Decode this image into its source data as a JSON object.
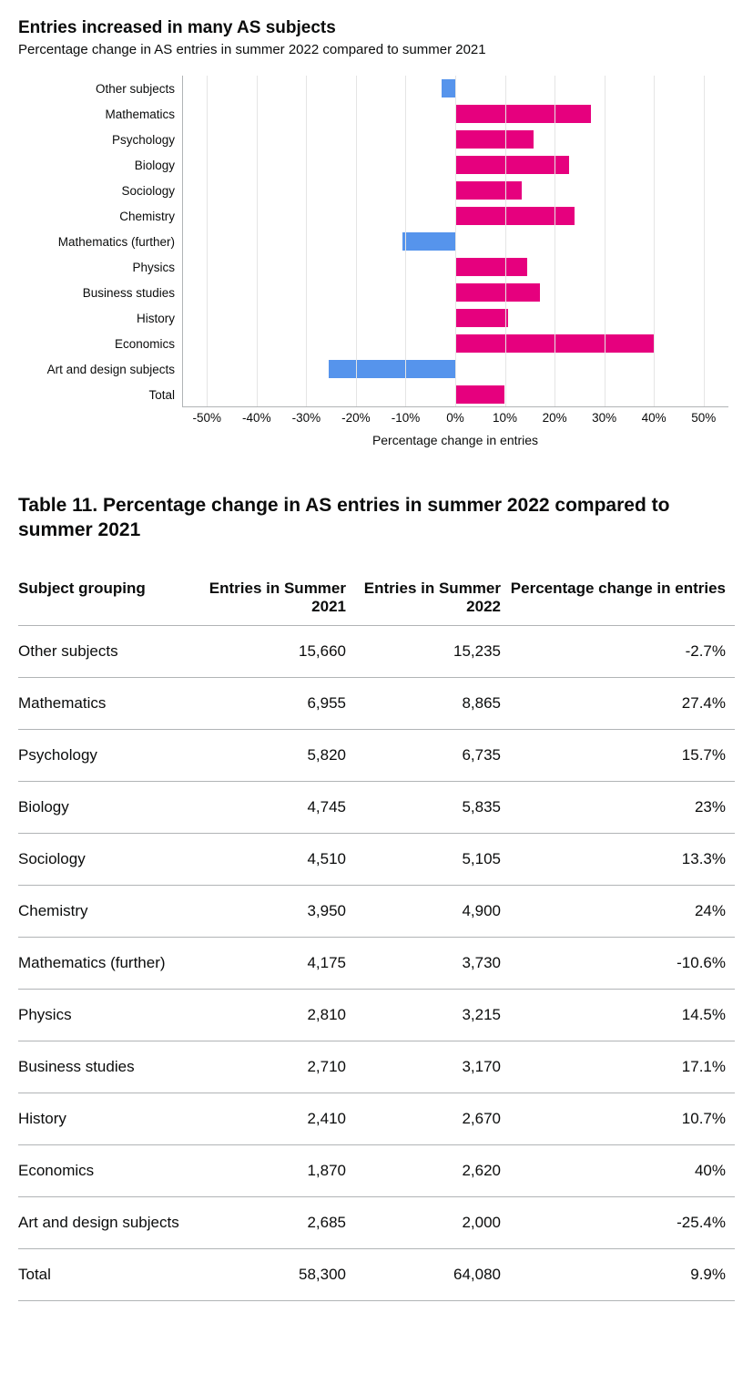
{
  "chart": {
    "title": "Entries increased in many AS subjects",
    "subtitle": "Percentage change in AS entries in summer 2022 compared to summer 2021",
    "xaxis_label": "Percentage change in entries",
    "xlim": [
      -55,
      55
    ],
    "xticks": [
      -50,
      -40,
      -30,
      -20,
      -10,
      0,
      10,
      20,
      30,
      40,
      50
    ],
    "xtick_labels": [
      "-50%",
      "-40%",
      "-30%",
      "-20%",
      "-10%",
      "0%",
      "10%",
      "20%",
      "30%",
      "40%",
      "50%"
    ],
    "positive_color": "#e6007e",
    "negative_color": "#5694ec",
    "grid_color": "#e5e5e5",
    "rows": [
      {
        "label": "Other subjects",
        "value": -2.7
      },
      {
        "label": "Mathematics",
        "value": 27.4
      },
      {
        "label": "Psychology",
        "value": 15.7
      },
      {
        "label": "Biology",
        "value": 23
      },
      {
        "label": "Sociology",
        "value": 13.3
      },
      {
        "label": "Chemistry",
        "value": 24
      },
      {
        "label": "Mathematics (further)",
        "value": -10.6
      },
      {
        "label": "Physics",
        "value": 14.5
      },
      {
        "label": "Business studies",
        "value": 17.1
      },
      {
        "label": "History",
        "value": 10.7
      },
      {
        "label": "Economics",
        "value": 40
      },
      {
        "label": "Art and design subjects",
        "value": -25.4
      },
      {
        "label": "Total",
        "value": 9.9
      }
    ]
  },
  "table": {
    "title": "Table 11. Percentage change in AS entries in summer 2022 compared to summer 2021",
    "columns": [
      "Subject grouping",
      "Entries in Summer 2021",
      "Entries in Summer 2022",
      "Percentage change in entries"
    ],
    "rows": [
      [
        "Other subjects",
        "15,660",
        "15,235",
        "-2.7%"
      ],
      [
        "Mathematics",
        "6,955",
        "8,865",
        "27.4%"
      ],
      [
        "Psychology",
        "5,820",
        "6,735",
        "15.7%"
      ],
      [
        "Biology",
        "4,745",
        "5,835",
        "23%"
      ],
      [
        "Sociology",
        "4,510",
        "5,105",
        "13.3%"
      ],
      [
        "Chemistry",
        "3,950",
        "4,900",
        "24%"
      ],
      [
        "Mathematics (further)",
        "4,175",
        "3,730",
        "-10.6%"
      ],
      [
        "Physics",
        "2,810",
        "3,215",
        "14.5%"
      ],
      [
        "Business studies",
        "2,710",
        "3,170",
        "17.1%"
      ],
      [
        "History",
        "2,410",
        "2,670",
        "10.7%"
      ],
      [
        "Economics",
        "1,870",
        "2,620",
        "40%"
      ],
      [
        "Art and design subjects",
        "2,685",
        "2,000",
        "-25.4%"
      ],
      [
        "Total",
        "58,300",
        "64,080",
        "9.9%"
      ]
    ]
  }
}
